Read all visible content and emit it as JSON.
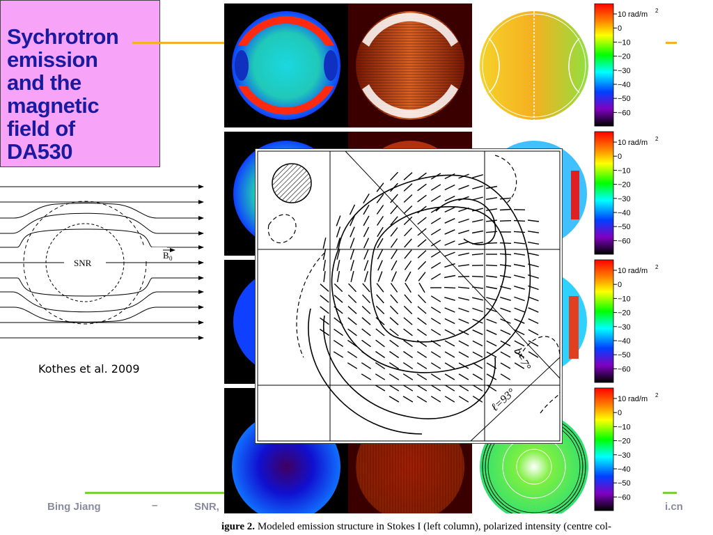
{
  "title": {
    "lines": [
      "Sychrotron",
      "emission",
      "and the",
      "magnetic",
      "field of",
      "DA530"
    ]
  },
  "diagram": {
    "center_label": "SNR",
    "field_label": "B",
    "field_subscript": "0"
  },
  "citation": "Kothes et al. 2009",
  "colorbar": {
    "unit": "rad/m",
    "unit_exponent": "2",
    "ticks": [
      "10",
      "0",
      "−10",
      "−20",
      "−30",
      "−40",
      "−50",
      "−60"
    ]
  },
  "overlay": {
    "label_b": "b=7°",
    "label_l": "ℓ=93°"
  },
  "footer": {
    "author": "Bing Jiang",
    "dash": "–",
    "topic": "SNR,",
    "email_fragment": "i.cn"
  },
  "caption": {
    "label": "igure 2.",
    "text": " Modeled emission structure in Stokes I (left column), polarized intensity (centre col-"
  },
  "colors": {
    "title_bg": "#f7a3f7",
    "title_text": "#1a1aa0",
    "accent_orange": "#f5b026",
    "accent_green": "#7ccf3a",
    "footer_text": "#8a8aa0"
  }
}
